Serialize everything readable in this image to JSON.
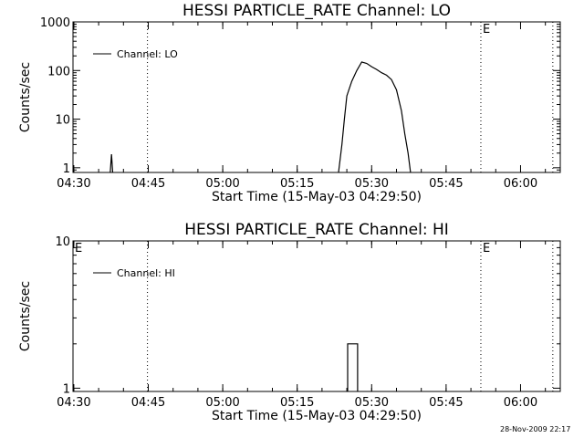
{
  "footer_timestamp": "28-Nov-2009 22:17",
  "chart_data": [
    {
      "type": "line",
      "title": "HESSI PARTICLE_RATE Channel: LO",
      "xlabel": "Start Time (15-May-03 04:29:50)",
      "ylabel": "Counts/sec",
      "xlim": [
        "04:29:50",
        "06:08:00"
      ],
      "x_ticks": [
        "04:30",
        "04:45",
        "05:00",
        "05:15",
        "05:30",
        "05:45",
        "06:00"
      ],
      "y_scale": "log",
      "ylim": [
        0.8,
        1000
      ],
      "y_ticks": [
        "1",
        "10",
        "100",
        "1000"
      ],
      "legend": {
        "position": "top-left",
        "entries": [
          "Channel: LO"
        ]
      },
      "vlines_dotted": [
        "04:44:50",
        "05:52:00",
        "06:06:30"
      ],
      "markers": [
        {
          "label": "E",
          "x": "05:52:00"
        }
      ],
      "series": [
        {
          "name": "Channel: LO",
          "segments": [
            [
              [
                "04:37:20",
                0.8
              ],
              [
                "04:37:35",
                1.9
              ],
              [
                "04:37:50",
                0.8
              ]
            ],
            [
              [
                "05:23:20",
                0.8
              ],
              [
                "05:24:00",
                3
              ],
              [
                "05:24:30",
                10
              ],
              [
                "05:25:00",
                30
              ],
              [
                "05:26:00",
                60
              ],
              [
                "05:27:00",
                100
              ],
              [
                "05:28:00",
                150
              ],
              [
                "05:29:00",
                140
              ],
              [
                "05:30:00",
                120
              ],
              [
                "05:31:00",
                105
              ],
              [
                "05:32:00",
                90
              ],
              [
                "05:33:00",
                80
              ],
              [
                "05:34:00",
                65
              ],
              [
                "05:35:00",
                40
              ],
              [
                "05:36:00",
                15
              ],
              [
                "05:36:40",
                5
              ],
              [
                "05:37:20",
                2
              ],
              [
                "05:37:50",
                0.8
              ]
            ]
          ]
        }
      ]
    },
    {
      "type": "line",
      "title": "HESSI PARTICLE_RATE Channel: HI",
      "xlabel": "Start Time (15-May-03 04:29:50)",
      "ylabel": "Counts/sec",
      "xlim": [
        "04:29:50",
        "06:08:00"
      ],
      "x_ticks": [
        "04:30",
        "04:45",
        "05:00",
        "05:15",
        "05:30",
        "05:45",
        "06:00"
      ],
      "y_scale": "log",
      "ylim": [
        0.95,
        10
      ],
      "y_ticks": [
        "1",
        "10"
      ],
      "legend": {
        "position": "top-left",
        "entries": [
          "Channel: HI"
        ]
      },
      "vlines_dotted": [
        "04:44:50",
        "05:52:00",
        "06:06:30"
      ],
      "markers": [
        {
          "label": "E",
          "x": "04:29:50"
        },
        {
          "label": "E",
          "x": "05:52:00"
        }
      ],
      "series": [
        {
          "name": "Channel: HI",
          "segments": [
            [
              [
                "05:25:10",
                0.95
              ],
              [
                "05:25:10",
                2
              ],
              [
                "05:27:10",
                2
              ],
              [
                "05:27:10",
                0.95
              ]
            ]
          ]
        }
      ]
    }
  ]
}
